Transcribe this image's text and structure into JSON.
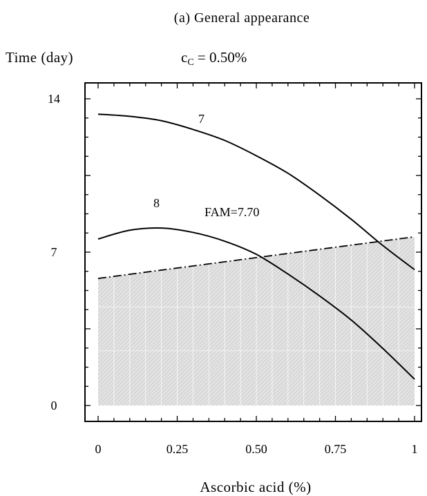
{
  "chart_data": {
    "type": "line",
    "title": "(a) General appearance",
    "ylabel": "Time (day)",
    "subtitle_main": "c",
    "subtitle_sub": "C",
    "subtitle_rest": " = 0.50%",
    "xlabel": "Ascorbic acid (%)",
    "xlim": [
      0,
      1
    ],
    "ylim": [
      0,
      14
    ],
    "x_ticks": [
      0,
      0.25,
      0.5,
      0.75,
      1
    ],
    "x_tick_labels": [
      "0",
      "0.25",
      "0.50",
      "0.75",
      "1"
    ],
    "y_ticks": [
      0,
      7,
      14
    ],
    "y_tick_labels": [
      "0",
      "7",
      "14"
    ],
    "grid": false,
    "series": [
      {
        "name": "7",
        "style": "solid",
        "x": [
          0,
          0.1,
          0.2,
          0.3,
          0.4,
          0.5,
          0.6,
          0.7,
          0.8,
          0.9,
          1.0
        ],
        "y": [
          13.3,
          13.2,
          13.0,
          12.6,
          12.1,
          11.4,
          10.6,
          9.6,
          8.5,
          7.3,
          6.2
        ]
      },
      {
        "name": "8",
        "style": "solid",
        "x": [
          0,
          0.1,
          0.2,
          0.3,
          0.4,
          0.5,
          0.6,
          0.7,
          0.8,
          0.9,
          1.0
        ],
        "y": [
          7.6,
          8.0,
          8.1,
          7.9,
          7.5,
          6.9,
          6.0,
          5.0,
          3.9,
          2.6,
          1.2
        ]
      },
      {
        "name": "FAM=7.70",
        "style": "dash-dot",
        "x": [
          0,
          1
        ],
        "y": [
          5.8,
          7.7
        ]
      }
    ],
    "shaded_region": {
      "below_series": "FAM=7.70",
      "color": "#dcdcdc"
    }
  }
}
